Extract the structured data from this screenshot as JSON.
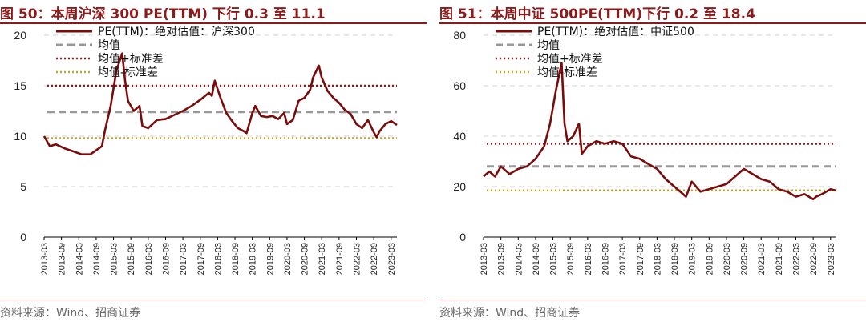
{
  "colors": {
    "accent": "#8b1a1a",
    "pe": "#7a0c0c",
    "mean": "#999999",
    "plus": "#8b1a1a",
    "minus": "#c9a227"
  },
  "charts": [
    {
      "title": "图 50：本周沪深 300 PE(TTM) 下行 0.3 至 11.1",
      "source": "资料来源：Wind、招商证券",
      "legend": [
        "PE(TTM)：绝对估值：沪深300",
        "均值",
        "均值+标准差",
        "均值-标准差"
      ]
    },
    {
      "title": "图 51：本周中证 500PE(TTM)下行 0.2 至 18.4",
      "source": "资料来源：Wind、招商证券",
      "legend": [
        "PE(TTM)：绝对估值：中证500",
        "均值",
        "均值+标准差",
        "均值-标准差"
      ]
    }
  ],
  "chart_data": [
    {
      "type": "line",
      "ylim": [
        0,
        20
      ],
      "yticks": [
        "0",
        "5",
        "10",
        "15",
        "20"
      ],
      "xlim": [
        "2013-03",
        "2023-05"
      ],
      "xticks": [
        "2013-03",
        "2013-09",
        "2014-03",
        "2014-09",
        "2015-03",
        "2015-09",
        "2016-03",
        "2016-09",
        "2017-03",
        "2017-09",
        "2018-03",
        "2018-09",
        "2019-03",
        "2019-09",
        "2020-03",
        "2020-09",
        "2021-03",
        "2021-09",
        "2022-03",
        "2022-09",
        "2023-03"
      ],
      "hlines": {
        "mean": 12.4,
        "plus": 15.0,
        "minus": 9.8
      },
      "series": [
        {
          "name": "PE(TTM)：绝对估值：沪深300",
          "x": [
            "2013-03",
            "2013-05",
            "2013-07",
            "2013-10",
            "2014-01",
            "2014-04",
            "2014-07",
            "2014-09",
            "2014-11",
            "2014-12",
            "2015-02",
            "2015-04",
            "2015-06",
            "2015-07",
            "2015-08",
            "2015-10",
            "2015-12",
            "2016-01",
            "2016-03",
            "2016-06",
            "2016-09",
            "2016-12",
            "2017-03",
            "2017-06",
            "2017-09",
            "2017-12",
            "2018-01",
            "2018-02",
            "2018-04",
            "2018-06",
            "2018-08",
            "2018-10",
            "2018-12",
            "2019-01",
            "2019-03",
            "2019-04",
            "2019-06",
            "2019-08",
            "2019-10",
            "2019-12",
            "2020-02",
            "2020-03",
            "2020-05",
            "2020-07",
            "2020-09",
            "2020-11",
            "2020-12",
            "2021-02",
            "2021-03",
            "2021-05",
            "2021-07",
            "2021-09",
            "2021-11",
            "2022-01",
            "2022-03",
            "2022-05",
            "2022-07",
            "2022-09",
            "2022-10",
            "2022-11",
            "2023-01",
            "2023-03",
            "2023-05"
          ],
          "y": [
            10.0,
            9.0,
            9.2,
            8.8,
            8.5,
            8.2,
            8.2,
            8.6,
            9.0,
            10.5,
            13.0,
            16.5,
            18.2,
            15.5,
            13.5,
            12.5,
            13.0,
            11.0,
            10.8,
            11.6,
            11.7,
            12.1,
            12.5,
            13.0,
            13.6,
            14.3,
            14.0,
            15.5,
            13.8,
            12.3,
            11.5,
            10.8,
            10.5,
            10.3,
            12.3,
            13.0,
            12.0,
            11.9,
            12.0,
            11.7,
            12.3,
            11.2,
            11.6,
            13.5,
            13.8,
            14.6,
            15.8,
            17.0,
            15.8,
            14.5,
            13.8,
            13.3,
            12.6,
            12.2,
            11.2,
            10.8,
            11.6,
            10.4,
            9.9,
            10.5,
            11.2,
            11.5,
            11.1
          ]
        }
      ]
    },
    {
      "type": "line",
      "ylim": [
        0,
        80
      ],
      "yticks": [
        "0",
        "20",
        "40",
        "60",
        "80"
      ],
      "xlim": [
        "2013-03",
        "2023-05"
      ],
      "xticks": [
        "2013-03",
        "2013-09",
        "2014-03",
        "2014-09",
        "2015-03",
        "2015-09",
        "2016-03",
        "2016-09",
        "2017-03",
        "2017-09",
        "2018-03",
        "2018-09",
        "2019-03",
        "2019-09",
        "2020-03",
        "2020-09",
        "2021-03",
        "2021-09",
        "2022-03",
        "2022-09",
        "2023-03"
      ],
      "hlines": {
        "mean": 28.0,
        "plus": 37.0,
        "minus": 18.5
      },
      "series": [
        {
          "name": "PE(TTM)：绝对估值：中证500",
          "x": [
            "2013-03",
            "2013-05",
            "2013-07",
            "2013-09",
            "2013-12",
            "2014-03",
            "2014-06",
            "2014-09",
            "2014-12",
            "2015-02",
            "2015-04",
            "2015-06",
            "2015-07",
            "2015-08",
            "2015-10",
            "2015-12",
            "2016-01",
            "2016-03",
            "2016-06",
            "2016-09",
            "2016-12",
            "2017-03",
            "2017-06",
            "2017-09",
            "2017-12",
            "2018-03",
            "2018-06",
            "2018-09",
            "2018-12",
            "2019-01",
            "2019-03",
            "2019-06",
            "2019-09",
            "2019-12",
            "2020-03",
            "2020-06",
            "2020-09",
            "2020-12",
            "2021-03",
            "2021-06",
            "2021-09",
            "2021-12",
            "2022-03",
            "2022-06",
            "2022-09",
            "2022-10",
            "2022-12",
            "2023-03",
            "2023-05"
          ],
          "y": [
            24.0,
            26.0,
            24.0,
            28.0,
            25.0,
            27.0,
            28.0,
            31.0,
            36.0,
            45.0,
            58.0,
            69.0,
            45.0,
            38.0,
            40.0,
            45.0,
            33.0,
            36.0,
            38.0,
            37.0,
            38.0,
            37.0,
            32.0,
            31.0,
            29.0,
            27.0,
            23.0,
            20.0,
            17.0,
            16.0,
            22.0,
            18.0,
            19.0,
            20.0,
            21.0,
            24.0,
            27.0,
            25.0,
            23.0,
            22.0,
            19.0,
            18.0,
            16.0,
            17.0,
            15.0,
            16.0,
            17.0,
            19.0,
            18.4
          ]
        }
      ]
    }
  ]
}
